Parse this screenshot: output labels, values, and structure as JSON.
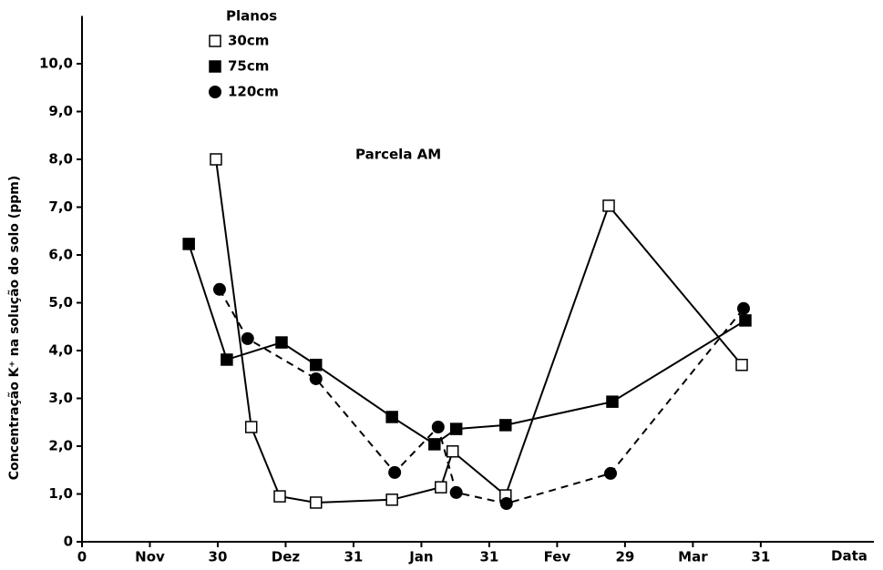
{
  "chart_data": {
    "type": "line",
    "annotation": "Parcela AM",
    "legend_title": "Planos",
    "x_label": "Data",
    "y_label": "Concentração K⁺ na solução do solo (ppm)",
    "xlim": [
      0,
      175
    ],
    "xticks": [
      0,
      {
        "value": 15,
        "label": "Nov"
      },
      30,
      {
        "value": 45,
        "label": "Dez"
      },
      {
        "value": 60,
        "label": "31"
      },
      {
        "value": 75,
        "label": "Jan"
      },
      {
        "value": 90,
        "label": "31"
      },
      {
        "value": 105,
        "label": "Fev"
      },
      {
        "value": 120,
        "label": "29"
      },
      {
        "value": 135,
        "label": "Mar"
      },
      {
        "value": 150,
        "label": "31"
      }
    ],
    "ylim": [
      0,
      11
    ],
    "yticks": [
      0,
      {
        "value": 1,
        "label": "1,0"
      },
      {
        "value": 2,
        "label": "2,0"
      },
      {
        "value": 3,
        "label": "3,0"
      },
      {
        "value": 4,
        "label": "4,0"
      },
      {
        "value": 5,
        "label": "5,0"
      },
      {
        "value": 6,
        "label": "6,0"
      },
      {
        "value": 7,
        "label": "7,0"
      },
      {
        "value": 8,
        "label": "8,0"
      },
      {
        "value": 9,
        "label": "9,0"
      },
      {
        "value": 10,
        "label": "10,0"
      }
    ],
    "series": [
      {
        "name": "30cm",
        "color": "#000000",
        "marker": "square-open",
        "dashed": false,
        "x": [
          29.6,
          37.4,
          43.7,
          51.7,
          68.5,
          79.3,
          81.9,
          93.6,
          116.4,
          145.8
        ],
        "values": [
          8.0,
          2.4,
          0.95,
          0.82,
          0.88,
          1.14,
          1.89,
          0.97,
          7.03,
          3.7
        ]
      },
      {
        "name": "75cm",
        "color": "#000000",
        "marker": "square",
        "dashed": false,
        "x": [
          23.6,
          32.0,
          44.1,
          51.7,
          68.5,
          77.9,
          82.7,
          93.6,
          117.2,
          146.6
        ],
        "values": [
          6.23,
          3.81,
          4.17,
          3.7,
          2.61,
          2.04,
          2.36,
          2.44,
          2.93,
          4.63
        ]
      },
      {
        "name": "120cm",
        "color": "#000000",
        "marker": "circle",
        "dashed": true,
        "x": [
          30.4,
          36.6,
          51.7,
          69.1,
          78.7,
          82.7,
          93.8,
          116.8,
          146.2
        ],
        "values": [
          5.28,
          4.25,
          3.41,
          1.45,
          2.4,
          1.03,
          0.8,
          1.43,
          4.88
        ]
      }
    ]
  }
}
